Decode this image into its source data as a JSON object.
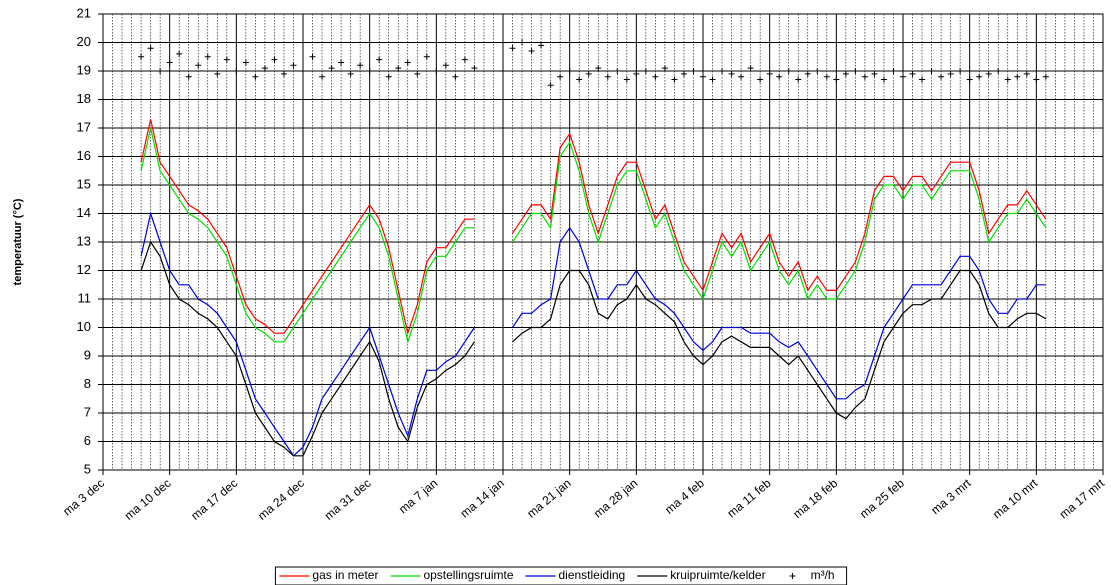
{
  "chart_data": {
    "type": "line",
    "y_label": "temperatuur (°C)",
    "categories": [
      "ma 3 dec",
      null,
      null,
      null,
      null,
      null,
      null,
      "ma 10 dec",
      null,
      null,
      null,
      null,
      null,
      null,
      "ma 17 dec",
      null,
      null,
      null,
      null,
      null,
      null,
      "ma 24 dec",
      null,
      null,
      null,
      null,
      null,
      null,
      "ma 31 dec",
      null,
      null,
      null,
      null,
      null,
      null,
      "ma 7 jan",
      null,
      null,
      null,
      null,
      null,
      null,
      "ma 14 jan",
      null,
      null,
      null,
      null,
      null,
      null,
      "ma 21 jan",
      null,
      null,
      null,
      null,
      null,
      null,
      "ma 28 jan",
      null,
      null,
      null,
      null,
      null,
      null,
      "ma 4 feb",
      null,
      null,
      null,
      null,
      null,
      null,
      "ma 11 feb",
      null,
      null,
      null,
      null,
      null,
      null,
      "ma 18 feb",
      null,
      null,
      null,
      null,
      null,
      null,
      "ma 25 feb",
      null,
      null,
      null,
      null,
      null,
      null,
      "ma 3 mrt",
      null,
      null,
      null,
      null,
      null,
      null,
      "ma 10 mrt",
      null,
      null,
      null,
      null,
      null,
      null,
      "ma 17 mrt"
    ],
    "ylim": [
      5,
      21
    ],
    "yticks": [
      5,
      6,
      7,
      8,
      9,
      10,
      11,
      12,
      13,
      14,
      15,
      16,
      17,
      18,
      19,
      20,
      21
    ],
    "grid": true,
    "legend": "bottom",
    "series": [
      {
        "name": "gas in meter",
        "type": "line",
        "color": "#ff0000",
        "values": [
          null,
          null,
          null,
          null,
          15.8,
          17.3,
          15.8,
          15.3,
          14.8,
          14.3,
          14.1,
          13.8,
          13.3,
          12.8,
          11.8,
          10.8,
          10.3,
          10.1,
          9.8,
          9.8,
          10.3,
          10.8,
          11.3,
          11.8,
          12.3,
          12.8,
          13.3,
          13.8,
          14.3,
          13.8,
          12.8,
          11.3,
          9.8,
          10.8,
          12.3,
          12.8,
          12.8,
          13.3,
          13.8,
          13.8,
          null,
          null,
          null,
          13.3,
          13.8,
          14.3,
          14.3,
          13.8,
          16.3,
          16.8,
          15.8,
          14.3,
          13.3,
          14.3,
          15.3,
          15.8,
          15.8,
          14.8,
          13.8,
          14.3,
          13.3,
          12.3,
          11.8,
          11.3,
          12.3,
          13.3,
          12.8,
          13.3,
          12.3,
          12.8,
          13.3,
          12.3,
          11.8,
          12.3,
          11.3,
          11.8,
          11.3,
          11.3,
          11.8,
          12.3,
          13.3,
          14.8,
          15.3,
          15.3,
          14.8,
          15.3,
          15.3,
          14.8,
          15.3,
          15.8,
          15.8,
          15.8,
          14.8,
          13.3,
          13.8,
          14.3,
          14.3,
          14.8,
          14.3,
          13.8,
          null,
          null,
          null,
          null,
          null,
          null
        ]
      },
      {
        "name": "opstellingsruimte",
        "type": "line",
        "color": "#00e000",
        "values": [
          null,
          null,
          null,
          null,
          15.5,
          17,
          15.5,
          15,
          14.5,
          14,
          13.8,
          13.5,
          13,
          12.5,
          11.5,
          10.5,
          10,
          9.8,
          9.5,
          9.5,
          10,
          10.5,
          11,
          11.5,
          12,
          12.5,
          13,
          13.5,
          14,
          13.5,
          12.5,
          11,
          9.5,
          10.5,
          12,
          12.5,
          12.5,
          13,
          13.5,
          13.5,
          null,
          null,
          null,
          13,
          13.5,
          14,
          14,
          13.5,
          16,
          16.5,
          15.5,
          14,
          13,
          14,
          15,
          15.5,
          15.5,
          14.5,
          13.5,
          14,
          13,
          12,
          11.5,
          11,
          12,
          13,
          12.5,
          13,
          12,
          12.5,
          13,
          12,
          11.5,
          12,
          11,
          11.5,
          11,
          11,
          11.5,
          12,
          13,
          14.5,
          15,
          15,
          14.5,
          15,
          15,
          14.5,
          15,
          15.5,
          15.5,
          15.5,
          14.5,
          13,
          13.5,
          14,
          14,
          14.5,
          14,
          13.5,
          null,
          null,
          null,
          null,
          null,
          null
        ]
      },
      {
        "name": "dienstleiding",
        "type": "line",
        "color": "#0000dd",
        "values": [
          null,
          null,
          null,
          null,
          12.5,
          14,
          13,
          12,
          11.5,
          11.5,
          11,
          10.8,
          10.5,
          10,
          9.5,
          8.5,
          7.5,
          7,
          6.5,
          6,
          5.5,
          5.8,
          6.5,
          7.5,
          8,
          8.5,
          9,
          9.5,
          10,
          9,
          8,
          7,
          6.2,
          7.5,
          8.5,
          8.5,
          8.8,
          9,
          9.5,
          10,
          null,
          null,
          null,
          10,
          10.5,
          10.5,
          10.8,
          11,
          13,
          13.5,
          13,
          12,
          11,
          11,
          11.5,
          11.5,
          12,
          11.5,
          11,
          10.8,
          10.5,
          10,
          9.5,
          9.2,
          9.5,
          10,
          10,
          10,
          9.8,
          9.8,
          9.8,
          9.5,
          9.3,
          9.5,
          9,
          8.5,
          8,
          7.5,
          7.5,
          7.8,
          8,
          9,
          10,
          10.5,
          11,
          11.5,
          11.5,
          11.5,
          11.5,
          12,
          12.5,
          12.5,
          12,
          11,
          10.5,
          10.5,
          11,
          11,
          11.5,
          11.5,
          null,
          null,
          null,
          null,
          null,
          null
        ]
      },
      {
        "name": "kruipruimte/kelder",
        "type": "line",
        "color": "#000000",
        "values": [
          null,
          null,
          null,
          null,
          12,
          13,
          12.5,
          11.5,
          11,
          10.8,
          10.5,
          10.3,
          10,
          9.5,
          9,
          8,
          7,
          6.5,
          6,
          5.8,
          5.5,
          5.5,
          6.2,
          7,
          7.5,
          8,
          8.5,
          9,
          9.5,
          8.8,
          7.5,
          6.5,
          6,
          7.2,
          8,
          8.2,
          8.5,
          8.7,
          9,
          9.5,
          null,
          null,
          null,
          9.5,
          9.8,
          10,
          10,
          10.3,
          11.5,
          12,
          12,
          11.5,
          10.5,
          10.3,
          10.8,
          11,
          11.5,
          11,
          10.8,
          10.5,
          10.2,
          9.5,
          9,
          8.7,
          9,
          9.5,
          9.7,
          9.5,
          9.3,
          9.3,
          9.3,
          9,
          8.7,
          9,
          8.5,
          8,
          7.5,
          7,
          6.8,
          7.2,
          7.5,
          8.5,
          9.5,
          10,
          10.5,
          10.8,
          10.8,
          11,
          11,
          11.5,
          12,
          12,
          11.5,
          10.5,
          10,
          10,
          10.3,
          10.5,
          10.5,
          10.3,
          null,
          null,
          null,
          null,
          null,
          null
        ]
      },
      {
        "name": "m³/h",
        "type": "scatter",
        "color": "#000000",
        "values": [
          null,
          null,
          null,
          null,
          19.5,
          19.8,
          19,
          19.3,
          19.6,
          18.8,
          19.2,
          19.5,
          18.9,
          19.4,
          19,
          19.3,
          18.8,
          19.1,
          19.4,
          18.9,
          19.2,
          19,
          19.5,
          18.8,
          19.1,
          19.3,
          18.9,
          19.2,
          19,
          19.4,
          18.8,
          19.1,
          19.3,
          18.9,
          19.5,
          19,
          19.2,
          18.8,
          19.4,
          19.1,
          null,
          null,
          null,
          19.8,
          20,
          19.7,
          19.9,
          18.5,
          18.8,
          19,
          18.7,
          18.9,
          19.1,
          18.8,
          19,
          18.7,
          18.9,
          19,
          18.8,
          19.1,
          18.7,
          18.9,
          19,
          18.8,
          18.7,
          19,
          18.9,
          18.8,
          19.1,
          18.7,
          18.9,
          18.8,
          19,
          18.7,
          18.9,
          19,
          18.8,
          18.7,
          18.9,
          19,
          18.8,
          18.9,
          18.7,
          19,
          18.8,
          18.9,
          18.7,
          19,
          18.8,
          18.9,
          19,
          18.7,
          18.8,
          18.9,
          19,
          18.7,
          18.8,
          18.9,
          18.7,
          18.8,
          null,
          null,
          null,
          null,
          null,
          null
        ]
      }
    ]
  }
}
